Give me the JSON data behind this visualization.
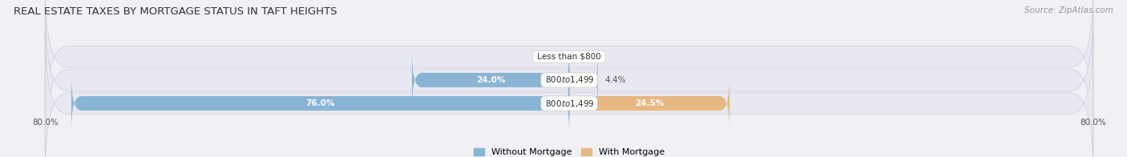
{
  "title": "REAL ESTATE TAXES BY MORTGAGE STATUS IN TAFT HEIGHTS",
  "source": "Source: ZipAtlas.com",
  "categories": [
    "Less than $800",
    "$800 to $1,499",
    "$800 to $1,499"
  ],
  "without_mortgage": [
    0.0,
    24.0,
    76.0
  ],
  "with_mortgage": [
    0.0,
    4.4,
    24.5
  ],
  "bar_color_left": "#8ab4d4",
  "bar_color_right": "#e8b882",
  "label_left": "Without Mortgage",
  "label_right": "With Mortgage",
  "xlim": 80.0,
  "row_bg_color": "#e4e4ec",
  "title_fontsize": 9.5,
  "source_fontsize": 7.5,
  "cat_fontsize": 7.5,
  "val_fontsize": 7.5,
  "legend_fontsize": 8,
  "tick_fontsize": 7.5,
  "bar_height": 0.62,
  "figsize": [
    14.06,
    1.96
  ],
  "dpi": 100
}
